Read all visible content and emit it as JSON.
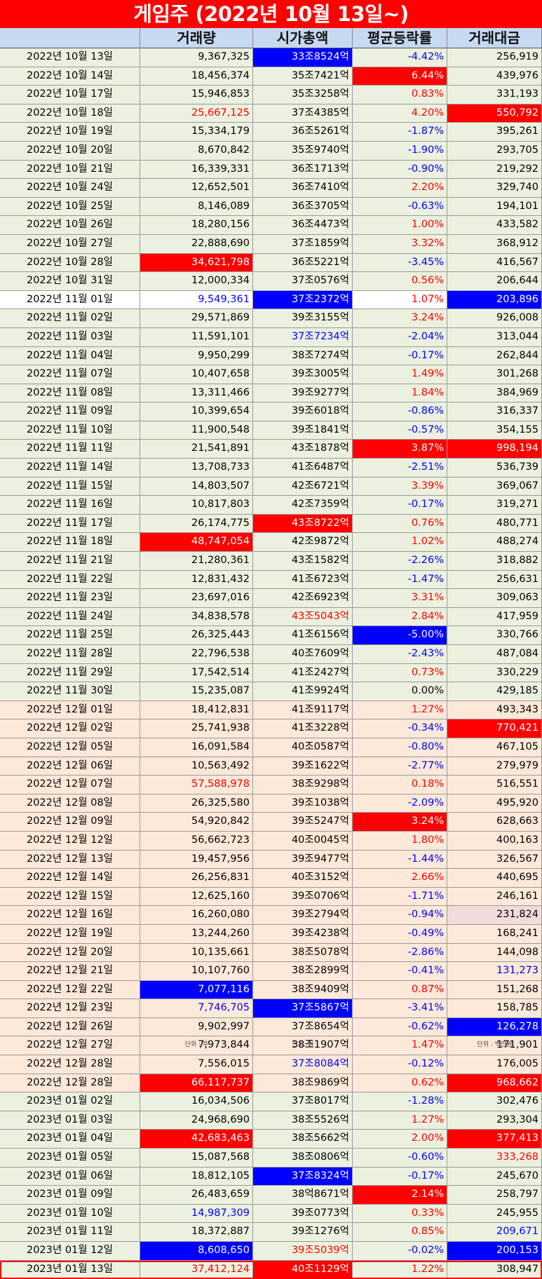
{
  "title": "게임주 (2022년 10월 13일~)",
  "headers": [
    "",
    "거래량",
    "시가총액",
    "평균등락률",
    "거래대금"
  ],
  "units": [
    "단위 : 주",
    "단위: 원",
    "단위 : 백만원"
  ],
  "rows": [
    {
      "g": "oct",
      "d": "2022년 10월 13일",
      "v": "9,367,325",
      "m": "33조8524억",
      "r": "-4.42%",
      "a": "256,919",
      "mc": "bg-blue",
      "rc": "t-blue"
    },
    {
      "g": "oct",
      "d": "2022년 10월 14일",
      "v": "18,456,374",
      "m": "35조7421억",
      "r": "6.44%",
      "a": "439,976",
      "rc": "bg-red"
    },
    {
      "g": "oct",
      "d": "2022년 10월 17일",
      "v": "15,946,853",
      "m": "35조3258억",
      "r": "0.83%",
      "a": "331,193",
      "rc": "t-red"
    },
    {
      "g": "oct",
      "d": "2022년 10월 18일",
      "v": "25,667,125",
      "m": "37조4385억",
      "r": "4.20%",
      "a": "550,792",
      "vc": "t-red",
      "rc": "t-red",
      "ac": "bg-red"
    },
    {
      "g": "oct",
      "d": "2022년 10월 19일",
      "v": "15,334,179",
      "m": "36조5261억",
      "r": "-1.87%",
      "a": "395,261",
      "rc": "t-blue"
    },
    {
      "g": "oct",
      "d": "2022년 10월 20일",
      "v": "8,670,842",
      "m": "35조9740억",
      "r": "-1.90%",
      "a": "293,705",
      "rc": "t-blue"
    },
    {
      "g": "oct",
      "d": "2022년 10월 21일",
      "v": "16,339,331",
      "m": "36조1713억",
      "r": "-0.90%",
      "a": "219,292",
      "rc": "t-blue"
    },
    {
      "g": "oct",
      "d": "2022년 10월 24일",
      "v": "12,652,501",
      "m": "36조7410억",
      "r": "2.20%",
      "a": "329,740",
      "rc": "t-red"
    },
    {
      "g": "oct",
      "d": "2022년 10월 25일",
      "v": "8,146,089",
      "m": "36조3705억",
      "r": "-0.63%",
      "a": "194,101",
      "rc": "t-blue"
    },
    {
      "g": "oct",
      "d": "2022년 10월 26일",
      "v": "18,280,156",
      "m": "36조4473억",
      "r": "1.00%",
      "a": "433,582",
      "rc": "t-red"
    },
    {
      "g": "oct",
      "d": "2022년 10월 27일",
      "v": "22,888,690",
      "m": "37조1859억",
      "r": "3.32%",
      "a": "368,912",
      "rc": "t-red"
    },
    {
      "g": "oct",
      "d": "2022년 10월 28일",
      "v": "34,621,798",
      "m": "36조5221억",
      "r": "-3.45%",
      "a": "416,567",
      "vc": "bg-red",
      "rc": "t-blue"
    },
    {
      "g": "oct",
      "d": "2022년 10월 31일",
      "v": "12,000,334",
      "m": "37조0576억",
      "r": "0.56%",
      "a": "206,644",
      "rc": "t-red"
    },
    {
      "g": "plain",
      "d": "2022년 11월 01일",
      "v": "9,549,361",
      "m": "37조2372억",
      "r": "1.07%",
      "a": "203,896",
      "vc": "t-blue",
      "mc": "bg-blue",
      "rc": "t-red",
      "ac": "bg-blue"
    },
    {
      "g": "nov",
      "d": "2022년 11월 02일",
      "v": "29,571,869",
      "m": "39조3155억",
      "r": "3.24%",
      "a": "926,008",
      "rc": "t-red"
    },
    {
      "g": "nov",
      "d": "2022년 11월 03일",
      "v": "11,591,101",
      "m": "37조7234억",
      "r": "-2.04%",
      "a": "313,044",
      "mc": "t-blue",
      "rc": "t-blue"
    },
    {
      "g": "nov",
      "d": "2022년 11월 04일",
      "v": "9,950,299",
      "m": "38조7274억",
      "r": "-0.17%",
      "a": "262,844",
      "rc": "t-blue"
    },
    {
      "g": "nov",
      "d": "2022년 11월 07일",
      "v": "10,407,658",
      "m": "39조3005억",
      "r": "1.49%",
      "a": "301,268",
      "rc": "t-red"
    },
    {
      "g": "nov",
      "d": "2022년 11월 08일",
      "v": "13,311,466",
      "m": "39조9277억",
      "r": "1.84%",
      "a": "384,969",
      "rc": "t-red"
    },
    {
      "g": "nov",
      "d": "2022년 11월 09일",
      "v": "10,399,654",
      "m": "39조6018억",
      "r": "-0.86%",
      "a": "316,337",
      "rc": "t-blue"
    },
    {
      "g": "nov",
      "d": "2022년 11월 10일",
      "v": "11,900,548",
      "m": "39조1841억",
      "r": "-0.57%",
      "a": "354,155",
      "rc": "t-blue"
    },
    {
      "g": "nov",
      "d": "2022년 11월 11일",
      "v": "21,541,891",
      "m": "43조1878억",
      "r": "3.87%",
      "a": "998,194",
      "rc": "bg-red",
      "ac": "bg-red"
    },
    {
      "g": "nov",
      "d": "2022년 11월 14일",
      "v": "13,708,733",
      "m": "41조6487억",
      "r": "-2.51%",
      "a": "536,739",
      "rc": "t-blue"
    },
    {
      "g": "nov",
      "d": "2022년 11월 15일",
      "v": "14,803,507",
      "m": "42조6721억",
      "r": "3.39%",
      "a": "369,067",
      "rc": "t-red"
    },
    {
      "g": "nov",
      "d": "2022년 11월 16일",
      "v": "10,817,803",
      "m": "42조7359억",
      "r": "-0.17%",
      "a": "319,271",
      "rc": "t-blue"
    },
    {
      "g": "nov",
      "d": "2022년 11월 17일",
      "v": "26,174,775",
      "m": "43조8722억",
      "r": "0.76%",
      "a": "480,771",
      "mc": "bg-red",
      "rc": "t-red"
    },
    {
      "g": "nov",
      "d": "2022년 11월 18일",
      "v": "48,747,054",
      "m": "42조9872억",
      "r": "1.02%",
      "a": "488,274",
      "vc": "bg-red",
      "rc": "t-red"
    },
    {
      "g": "nov",
      "d": "2022년 11월 21일",
      "v": "21,280,361",
      "m": "43조1582억",
      "r": "-2.26%",
      "a": "318,882",
      "rc": "t-blue"
    },
    {
      "g": "nov",
      "d": "2022년 11월 22일",
      "v": "12,831,432",
      "m": "41조6723억",
      "r": "-1.47%",
      "a": "256,631",
      "rc": "t-blue"
    },
    {
      "g": "nov",
      "d": "2022년 11월 23일",
      "v": "23,697,016",
      "m": "42조6923억",
      "r": "3.31%",
      "a": "309,063",
      "rc": "t-red"
    },
    {
      "g": "nov",
      "d": "2022년 11월 24일",
      "v": "34,838,578",
      "m": "43조5043억",
      "r": "2.84%",
      "a": "417,959",
      "mc": "t-red",
      "rc": "t-red"
    },
    {
      "g": "nov",
      "d": "2022년 11월 25일",
      "v": "26,325,443",
      "m": "41조6156억",
      "r": "-5.00%",
      "a": "330,766",
      "rc": "bg-blue"
    },
    {
      "g": "nov",
      "d": "2022년 11월 28일",
      "v": "22,796,538",
      "m": "40조7609억",
      "r": "-2.43%",
      "a": "487,084",
      "rc": "t-blue"
    },
    {
      "g": "nov",
      "d": "2022년 11월 29일",
      "v": "17,542,514",
      "m": "41조2427억",
      "r": "0.73%",
      "a": "330,229",
      "rc": "t-red"
    },
    {
      "g": "nov",
      "d": "2022년 11월 30일",
      "v": "15,235,087",
      "m": "41조9924억",
      "r": "0.00%",
      "a": "429,185"
    },
    {
      "g": "dec",
      "d": "2022년 12월 01일",
      "v": "18,412,831",
      "m": "41조9117억",
      "r": "1.27%",
      "a": "493,343",
      "rc": "t-red"
    },
    {
      "g": "dec",
      "d": "2022년 12월 02일",
      "v": "25,741,938",
      "m": "41조3228억",
      "r": "-0.34%",
      "a": "770,421",
      "rc": "t-blue",
      "ac": "bg-red"
    },
    {
      "g": "dec",
      "d": "2022년 12월 05일",
      "v": "16,091,584",
      "m": "40조0587억",
      "r": "-0.80%",
      "a": "467,105",
      "rc": "t-blue"
    },
    {
      "g": "dec",
      "d": "2022년 12월 06일",
      "v": "10,563,492",
      "m": "39조1622억",
      "r": "-2.77%",
      "a": "279,979",
      "rc": "t-blue"
    },
    {
      "g": "dec",
      "d": "2022년 12월 07일",
      "v": "57,588,978",
      "m": "38조9298억",
      "r": "0.18%",
      "a": "516,551",
      "vc": "t-red",
      "rc": "t-red"
    },
    {
      "g": "dec",
      "d": "2022년 12월 08일",
      "v": "26,325,580",
      "m": "39조1038억",
      "r": "-2.09%",
      "a": "495,920",
      "rc": "t-blue"
    },
    {
      "g": "dec",
      "d": "2022년 12월 09일",
      "v": "54,920,842",
      "m": "39조5247억",
      "r": "3.24%",
      "a": "628,663",
      "rc": "bg-red"
    },
    {
      "g": "dec",
      "d": "2022년 12월 12일",
      "v": "56,662,723",
      "m": "40조0045억",
      "r": "1.80%",
      "a": "400,163",
      "rc": "t-red"
    },
    {
      "g": "dec",
      "d": "2022년 12월 13일",
      "v": "19,457,956",
      "m": "39조9477억",
      "r": "-1.44%",
      "a": "326,567",
      "rc": "t-blue"
    },
    {
      "g": "dec",
      "d": "2022년 12월 14일",
      "v": "26,256,831",
      "m": "40조3152억",
      "r": "2.66%",
      "a": "440,695",
      "rc": "t-red"
    },
    {
      "g": "dec",
      "d": "2022년 12월 15일",
      "v": "12,625,160",
      "m": "39조0706억",
      "r": "-1.71%",
      "a": "246,161",
      "rc": "t-blue"
    },
    {
      "g": "dec",
      "d": "2022년 12월 16일",
      "v": "16,260,080",
      "m": "39조2794억",
      "r": "-0.94%",
      "a": "231,824",
      "rc": "t-blue",
      "ac": "bg-pink"
    },
    {
      "g": "dec",
      "d": "2022년 12월 19일",
      "v": "13,244,260",
      "m": "39조4238억",
      "r": "-0.49%",
      "a": "168,241",
      "rc": "t-blue"
    },
    {
      "g": "dec",
      "d": "2022년 12월 20일",
      "v": "10,135,661",
      "m": "38조5078억",
      "r": "-2.86%",
      "a": "144,098",
      "rc": "t-blue"
    },
    {
      "g": "dec",
      "d": "2022년 12월 21일",
      "v": "10,107,760",
      "m": "38조2899억",
      "r": "-0.41%",
      "a": "131,273",
      "rc": "t-blue",
      "ac": "t-blue"
    },
    {
      "g": "dec",
      "d": "2022년 12월 22일",
      "v": "7,077,116",
      "m": "38조9409억",
      "r": "0.87%",
      "a": "151,268",
      "vc": "bg-blue",
      "rc": "t-red"
    },
    {
      "g": "dec",
      "d": "2022년 12월 23일",
      "v": "7,746,705",
      "m": "37조5867억",
      "r": "-3.41%",
      "a": "158,785",
      "vc": "t-blue",
      "mc": "bg-blue",
      "rc": "t-blue"
    },
    {
      "g": "dec",
      "d": "2022년 12월 26일",
      "v": "9,902,997",
      "m": "37조8654억",
      "r": "-0.62%",
      "a": "126,278",
      "rc": "t-blue",
      "ac": "bg-blue"
    },
    {
      "g": "dec",
      "d": "2022년 12월 27일",
      "v": "7,973,844",
      "m": "38조1907억",
      "r": "1.47%",
      "a": "171,901",
      "rc": "t-red"
    },
    {
      "g": "dec",
      "d": "2022년 12월 28일",
      "v": "7,556,015",
      "m": "37조8084억",
      "r": "-0.12%",
      "a": "176,005",
      "mc": "t-blue",
      "rc": "t-blue"
    },
    {
      "g": "dec",
      "d": "2022년 12월 28일",
      "v": "66,117,737",
      "m": "38조9869억",
      "r": "0.62%",
      "a": "968,662",
      "vc": "bg-red",
      "rc": "t-red",
      "ac": "bg-red"
    },
    {
      "g": "jan",
      "d": "2023년 01월 02일",
      "v": "16,034,506",
      "m": "37조8017억",
      "r": "-1.28%",
      "a": "302,476",
      "rc": "t-blue"
    },
    {
      "g": "jan",
      "d": "2023년 01월 03일",
      "v": "24,968,690",
      "m": "38조5526억",
      "r": "1.27%",
      "a": "293,304",
      "rc": "t-red"
    },
    {
      "g": "jan",
      "d": "2023년 01월 04일",
      "v": "42,683,463",
      "m": "38조5662억",
      "r": "2.00%",
      "a": "377,413",
      "vc": "bg-red",
      "rc": "t-red",
      "ac": "bg-red"
    },
    {
      "g": "jan",
      "d": "2023년 01월 05일",
      "v": "15,087,568",
      "m": "38조0806억",
      "r": "-0.60%",
      "a": "333,268",
      "rc": "t-blue",
      "ac": "t-red"
    },
    {
      "g": "jan",
      "d": "2023년 01월 06일",
      "v": "18,812,105",
      "m": "37조8324억",
      "r": "-0.17%",
      "a": "245,670",
      "mc": "bg-blue",
      "rc": "t-blue"
    },
    {
      "g": "jan",
      "d": "2023년 01월 09일",
      "v": "26,483,659",
      "m": "38억8671억",
      "r": "2.14%",
      "a": "258,797",
      "rc": "bg-red"
    },
    {
      "g": "jan",
      "d": "2023년 01월 10일",
      "v": "14,987,309",
      "m": "39조0773억",
      "r": "0.33%",
      "a": "245,955",
      "vc": "t-blue",
      "rc": "t-red"
    },
    {
      "g": "jan",
      "d": "2023년 01월 11일",
      "v": "18,372,887",
      "m": "39조1276억",
      "r": "0.85%",
      "a": "209,671",
      "rc": "t-red",
      "ac": "t-blue"
    },
    {
      "g": "jan",
      "d": "2023년 01월 12일",
      "v": "8,608,650",
      "m": "39조5039억",
      "r": "-0.02%",
      "a": "200,153",
      "vc": "bg-blue",
      "mc": "t-red",
      "rc": "t-blue",
      "ac": "bg-blue"
    },
    {
      "g": "jan",
      "d": "2023년 01월 13일",
      "v": "37,412,124",
      "m": "40조1129억",
      "r": "1.22%",
      "a": "308,947",
      "vc": "t-red",
      "mc": "bg-red",
      "rc": "t-red",
      "last": true
    }
  ]
}
